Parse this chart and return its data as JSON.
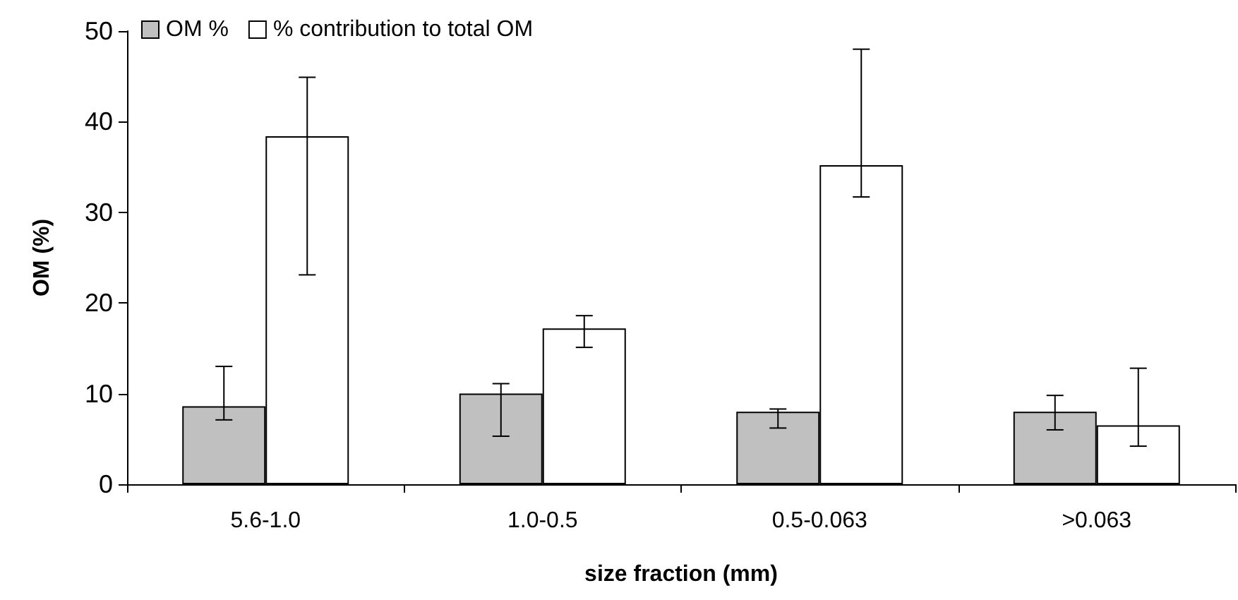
{
  "chart_data": {
    "type": "bar",
    "xlabel": "size fraction (mm)",
    "ylabel": "OM (%)",
    "categories": [
      "5.6-1.0",
      "1.0-0.5",
      "0.5-0.063",
      ">0.063"
    ],
    "series": [
      {
        "name": "OM %",
        "color": "#c0c0c0",
        "values": [
          8.6,
          10.0,
          8.0,
          8.0
        ],
        "errors": [
          [
            7.1,
            13.0
          ],
          [
            5.3,
            11.1
          ],
          [
            6.2,
            8.3
          ],
          [
            6.0,
            9.8
          ]
        ]
      },
      {
        "name": "% contribution to total OM",
        "color": "#ffffff",
        "values": [
          38.4,
          17.2,
          35.2,
          6.5
        ],
        "errors": [
          [
            23.1,
            44.9
          ],
          [
            15.1,
            18.6
          ],
          [
            31.7,
            48.0
          ],
          [
            4.2,
            12.8
          ]
        ]
      }
    ],
    "ylim": [
      0,
      50
    ],
    "yticks": [
      0,
      10,
      20,
      30,
      40,
      50
    ],
    "grid": false,
    "legend": "top left"
  }
}
